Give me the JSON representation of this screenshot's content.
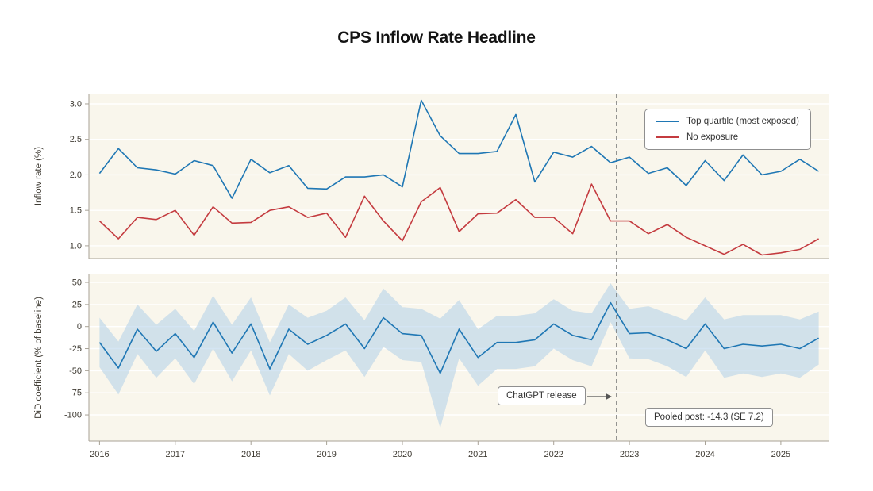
{
  "chart_data": [
    {
      "type": "line",
      "title": "CPS Inflow Rate Headline",
      "ylabel": "Inflow rate (%)",
      "yticks": [
        3.0,
        2.5,
        2.0,
        1.5,
        1.0
      ],
      "ylim": [
        0.82,
        3.15
      ],
      "grid": "horizontal-white-on-cream",
      "legend_position": "upper right",
      "x": [
        2016,
        2016.25,
        2016.5,
        2016.75,
        2017,
        2017.25,
        2017.5,
        2017.75,
        2018,
        2018.25,
        2018.5,
        2018.75,
        2019,
        2019.25,
        2019.5,
        2019.75,
        2020,
        2020.25,
        2020.5,
        2020.75,
        2021,
        2021.25,
        2021.5,
        2021.75,
        2022,
        2022.25,
        2022.5,
        2022.75,
        2023,
        2023.25,
        2023.5,
        2023.75,
        2024,
        2024.25,
        2024.5,
        2024.75,
        2025,
        2025.25,
        2025.5
      ],
      "series": [
        {
          "name": "Top quartile (most exposed)",
          "color": "#1f77b4",
          "values": [
            2.02,
            2.37,
            2.1,
            2.07,
            2.01,
            2.2,
            2.13,
            1.67,
            2.22,
            2.03,
            2.13,
            1.81,
            1.8,
            1.97,
            1.97,
            2.0,
            1.83,
            3.05,
            2.55,
            2.3,
            2.3,
            2.33,
            2.85,
            1.9,
            2.32,
            2.25,
            2.4,
            2.17,
            2.25,
            2.02,
            2.1,
            1.85,
            2.2,
            1.92,
            2.28,
            2.0,
            2.05,
            2.22,
            2.05
          ]
        },
        {
          "name": "No exposure",
          "color": "#c43b3f",
          "values": [
            1.35,
            1.1,
            1.4,
            1.37,
            1.5,
            1.15,
            1.55,
            1.32,
            1.33,
            1.5,
            1.55,
            1.4,
            1.46,
            1.12,
            1.7,
            1.35,
            1.07,
            1.62,
            1.82,
            1.2,
            1.45,
            1.46,
            1.65,
            1.4,
            1.4,
            1.17,
            1.87,
            1.35,
            1.35,
            1.17,
            1.3,
            1.12,
            1.0,
            0.88,
            1.02,
            0.87,
            0.9,
            0.95,
            1.1
          ]
        }
      ]
    },
    {
      "type": "line",
      "ylabel": "DiD coefficient (% of baseline)",
      "yticks": [
        50,
        25,
        0,
        -25,
        -50,
        -75,
        -100
      ],
      "ylim": [
        -129.6,
        59
      ],
      "xticks": [
        2016,
        2017,
        2018,
        2019,
        2020,
        2021,
        2022,
        2023,
        2024,
        2025
      ],
      "grid": "horizontal-white-on-cream",
      "x": [
        2016,
        2016.25,
        2016.5,
        2016.75,
        2017,
        2017.25,
        2017.5,
        2017.75,
        2018,
        2018.25,
        2018.5,
        2018.75,
        2019,
        2019.25,
        2019.5,
        2019.75,
        2020,
        2020.25,
        2020.5,
        2020.75,
        2021,
        2021.25,
        2021.5,
        2021.75,
        2022,
        2022.25,
        2022.5,
        2022.75,
        2023,
        2023.25,
        2023.5,
        2023.75,
        2024,
        2024.25,
        2024.5,
        2024.75,
        2025,
        2025.25,
        2025.5
      ],
      "series": [
        {
          "name": "DiD coefficient",
          "color": "#1f77b4",
          "band_color": "#a9cbe8",
          "values": [
            -18,
            -47,
            -3,
            -28,
            -8,
            -35,
            5,
            -30,
            3,
            -48,
            -3,
            -20,
            -10,
            3,
            -25,
            10,
            -8,
            -10,
            -53,
            -3,
            -35,
            -18,
            -18,
            -15,
            3,
            -10,
            -15,
            27,
            -8,
            -7,
            -15,
            -25,
            3,
            -25,
            -20,
            -22,
            -20,
            -25,
            -13
          ],
          "ci_high": [
            10,
            -17,
            25,
            2,
            20,
            -5,
            35,
            2,
            33,
            -18,
            25,
            10,
            18,
            33,
            7,
            43,
            22,
            20,
            9,
            30,
            -3,
            12,
            12,
            15,
            31,
            18,
            15,
            49,
            20,
            23,
            15,
            7,
            33,
            8,
            13,
            13,
            13,
            8,
            17
          ],
          "ci_low": [
            -46,
            -77,
            -31,
            -58,
            -36,
            -65,
            -25,
            -62,
            -27,
            -78,
            -31,
            -50,
            -38,
            -27,
            -57,
            -23,
            -38,
            -40,
            -115,
            -36,
            -67,
            -48,
            -48,
            -45,
            -25,
            -38,
            -45,
            5,
            -36,
            -37,
            -45,
            -57,
            -27,
            -58,
            -53,
            -57,
            -53,
            -58,
            -43
          ]
        }
      ],
      "vline": {
        "x": 2022.83,
        "style": "dashed",
        "color": "#6a6a6a"
      },
      "annotations": [
        {
          "text": "ChatGPT release",
          "type": "box-with-arrow"
        },
        {
          "text": "Pooled post: -14.3 (SE 7.2)",
          "type": "box"
        }
      ]
    }
  ]
}
